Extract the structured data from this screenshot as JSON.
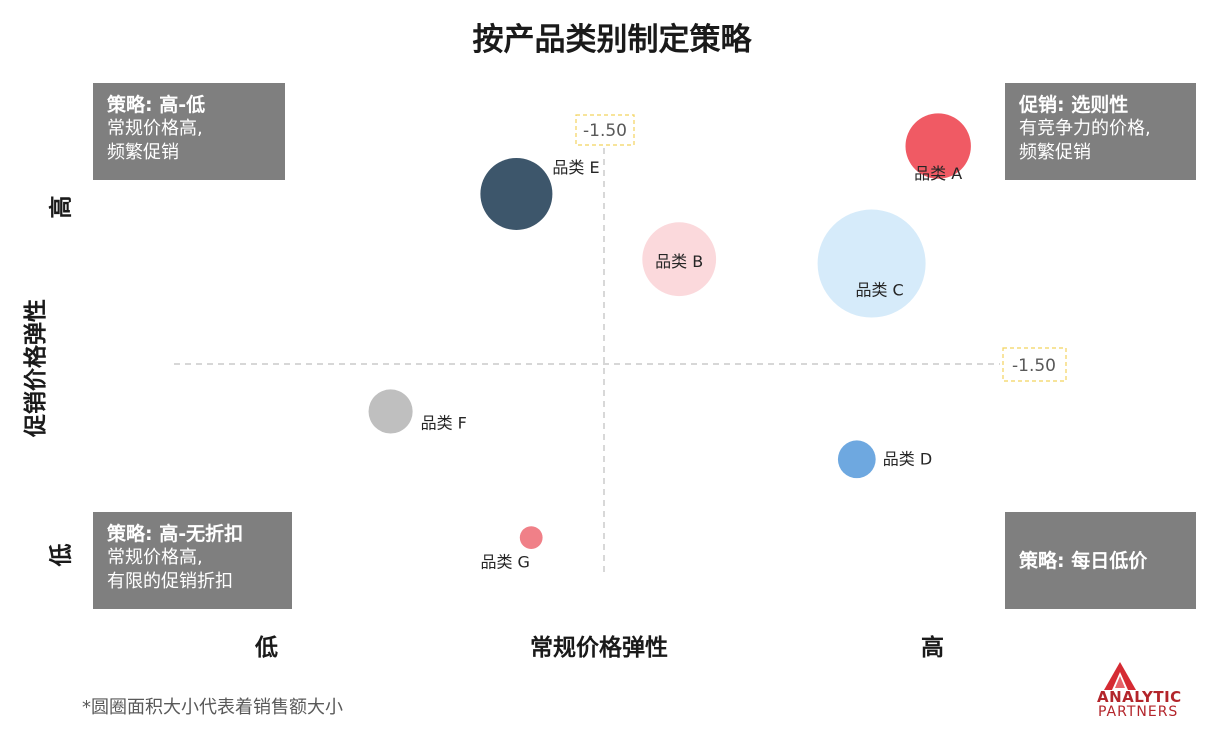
{
  "title": "按产品类别制定策略",
  "quadrants": {
    "top_left": {
      "title": "策略: 高-低",
      "line1": "常规价格高,",
      "line2": "频繁促销"
    },
    "top_right": {
      "title": "促销: 选则性",
      "line1": "有竞争力的价格,",
      "line2": "频繁促销"
    },
    "bottom_left": {
      "title": "策略: 高-无折扣",
      "line1": "常规价格高,",
      "line2": "有限的促销折扣"
    },
    "bottom_right": {
      "title": "策略: 每日低价"
    }
  },
  "axes": {
    "x_title": "常规价格弹性",
    "x_low": "低",
    "x_high": "高",
    "y_title": "促销价格弹性",
    "y_high": "高",
    "y_low": "低"
  },
  "footnote": "*圆圈面积大小代表着销售额大小",
  "logo": {
    "line1": "ANALYTIC",
    "line2": "PARTNERS"
  },
  "chart_data": {
    "type": "bubble",
    "x_divider": {
      "label": "-1.50",
      "value": -1.5
    },
    "y_divider": {
      "label": "-1.50",
      "value": -1.5
    },
    "points": [
      {
        "label": "品类 A",
        "x": 0.93,
        "y": 0.94,
        "size": 3.3,
        "color": "#f05a64"
      },
      {
        "label": "品类 B",
        "x": 0.58,
        "y": 0.68,
        "size": 4.2,
        "color": "#fbd9dc"
      },
      {
        "label": "品类 C",
        "x": 0.84,
        "y": 0.67,
        "size": 9.0,
        "color": "#d6ebfa"
      },
      {
        "label": "品类 D",
        "x": 0.82,
        "y": 0.22,
        "size": 1.1,
        "color": "#6ea8e0"
      },
      {
        "label": "品类 E",
        "x": 0.36,
        "y": 0.83,
        "size": 4.0,
        "color": "#3d566b"
      },
      {
        "label": "品类 F",
        "x": 0.19,
        "y": 0.33,
        "size": 1.5,
        "color": "#bfbfbf"
      },
      {
        "label": "品类 G",
        "x": 0.38,
        "y": 0.04,
        "size": 0.4,
        "color": "#f08088"
      }
    ]
  }
}
